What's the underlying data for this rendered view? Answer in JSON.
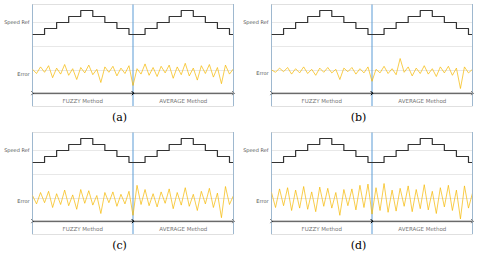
{
  "chart_data": [
    {
      "type": "line",
      "title": "(a)",
      "xlim": [
        0,
        100
      ],
      "ylim": [
        -6,
        11
      ],
      "yticks": [
        -4,
        0,
        4,
        8
      ],
      "grid": true,
      "tick_labels": false,
      "annotations": [
        {
          "text": "FUZZY Method",
          "x": [
            0,
            50
          ]
        },
        {
          "text": "AVERAGE Method",
          "x": [
            50,
            100
          ]
        }
      ],
      "series": [
        {
          "name": "Speed Ref",
          "color": "#333333",
          "line_style": "step",
          "x": [
            0,
            6,
            12,
            18,
            24,
            30,
            36,
            42,
            48,
            50,
            56,
            62,
            68,
            74,
            80,
            86,
            92,
            98,
            100
          ],
          "values": [
            6,
            7,
            8,
            9,
            10,
            9,
            8,
            7,
            6,
            6,
            7,
            8,
            9,
            10,
            9,
            8,
            7,
            6,
            6
          ]
        },
        {
          "name": "Error",
          "color": "#f5b800",
          "line_style": "solid",
          "x": [
            0,
            2,
            4,
            6,
            8,
            10,
            12,
            14,
            16,
            18,
            20,
            22,
            24,
            26,
            28,
            30,
            32,
            34,
            36,
            38,
            40,
            42,
            44,
            46,
            48,
            50,
            52,
            54,
            56,
            58,
            60,
            62,
            64,
            66,
            68,
            70,
            72,
            74,
            76,
            78,
            80,
            82,
            84,
            86,
            88,
            90,
            92,
            94,
            96,
            98,
            100
          ],
          "values": [
            0.2,
            -0.5,
            0.6,
            -0.3,
            0.8,
            -1.2,
            0.4,
            -0.6,
            1.0,
            -0.8,
            0.3,
            -1.5,
            0.5,
            -0.4,
            0.9,
            -0.7,
            0.2,
            -2.0,
            0.6,
            -0.3,
            0.7,
            -0.9,
            0.4,
            -0.5,
            0.8,
            -2.5,
            0.3,
            -0.6,
            1.1,
            -0.8,
            0.5,
            -1.0,
            0.7,
            -0.4,
            0.9,
            -1.3,
            0.6,
            -0.7,
            1.2,
            -0.9,
            0.4,
            -1.6,
            0.8,
            -0.5,
            1.0,
            -1.1,
            0.5,
            -2.2,
            0.9,
            -0.6,
            0.3
          ]
        }
      ]
    },
    {
      "type": "line",
      "title": "(b)",
      "xlim": [
        0,
        100
      ],
      "ylim": [
        -6,
        11
      ],
      "yticks": [
        -4,
        0,
        4,
        8
      ],
      "grid": true,
      "tick_labels": false,
      "annotations": [
        {
          "text": "FUZZY Method",
          "x": [
            0,
            50
          ]
        },
        {
          "text": "AVERAGE Method",
          "x": [
            50,
            100
          ]
        }
      ],
      "series": [
        {
          "name": "Speed Ref",
          "color": "#333333",
          "line_style": "step",
          "x": [
            0,
            6,
            12,
            18,
            24,
            30,
            36,
            42,
            48,
            50,
            56,
            62,
            68,
            74,
            80,
            86,
            92,
            98,
            100
          ],
          "values": [
            6,
            7,
            8,
            9,
            10,
            9,
            8,
            7,
            6,
            6,
            7,
            8,
            9,
            10,
            9,
            8,
            7,
            6,
            6
          ]
        },
        {
          "name": "Error",
          "color": "#f5b800",
          "line_style": "solid",
          "x": [
            0,
            2,
            4,
            6,
            8,
            10,
            12,
            14,
            16,
            18,
            20,
            22,
            24,
            26,
            28,
            30,
            32,
            34,
            36,
            38,
            40,
            42,
            44,
            46,
            48,
            50,
            52,
            54,
            56,
            58,
            60,
            62,
            64,
            66,
            68,
            70,
            72,
            74,
            76,
            78,
            80,
            82,
            84,
            86,
            88,
            90,
            92,
            94,
            96,
            98,
            100
          ],
          "values": [
            0.1,
            -0.3,
            0.4,
            -0.2,
            0.5,
            -0.6,
            0.3,
            -0.4,
            0.6,
            -0.5,
            0.2,
            -0.8,
            0.4,
            -0.3,
            0.5,
            -0.4,
            0.2,
            -1.5,
            0.4,
            -0.2,
            0.5,
            -0.6,
            0.3,
            -0.4,
            0.6,
            -1.8,
            0.2,
            -0.4,
            0.7,
            -0.5,
            0.3,
            -0.7,
            2.0,
            -0.3,
            0.6,
            -0.9,
            0.4,
            -0.5,
            0.8,
            -0.6,
            0.3,
            -1.0,
            0.6,
            -0.4,
            0.7,
            -0.8,
            0.4,
            -3.0,
            0.6,
            -0.4,
            0.2
          ]
        }
      ]
    },
    {
      "type": "line",
      "title": "(c)",
      "xlim": [
        0,
        100
      ],
      "ylim": [
        -6,
        11
      ],
      "yticks": [
        -4,
        0,
        4,
        8
      ],
      "grid": true,
      "tick_labels": false,
      "annotations": [
        {
          "text": "FUZZY Method",
          "x": [
            0,
            50
          ]
        },
        {
          "text": "AVERAGE Method",
          "x": [
            50,
            100
          ]
        }
      ],
      "series": [
        {
          "name": "Speed Ref",
          "color": "#333333",
          "line_style": "step",
          "x": [
            0,
            6,
            12,
            18,
            24,
            30,
            36,
            42,
            48,
            50,
            56,
            62,
            68,
            74,
            80,
            86,
            92,
            98,
            100
          ],
          "values": [
            6,
            7,
            8,
            9,
            10,
            9,
            8,
            7,
            6,
            6,
            7,
            8,
            9,
            10,
            9,
            8,
            7,
            6,
            6
          ]
        },
        {
          "name": "Error",
          "color": "#f5b800",
          "line_style": "solid",
          "x": [
            0,
            2,
            4,
            6,
            8,
            10,
            12,
            14,
            16,
            18,
            20,
            22,
            24,
            26,
            28,
            30,
            32,
            34,
            36,
            38,
            40,
            42,
            44,
            46,
            48,
            50,
            52,
            54,
            56,
            58,
            60,
            62,
            64,
            66,
            68,
            70,
            72,
            74,
            76,
            78,
            80,
            82,
            84,
            86,
            88,
            90,
            92,
            94,
            96,
            98,
            100
          ],
          "values": [
            0.5,
            -0.9,
            1.0,
            -0.7,
            1.2,
            -1.5,
            0.8,
            -1.0,
            1.4,
            -1.2,
            0.6,
            -1.8,
            1.5,
            -0.8,
            1.3,
            -1.1,
            0.5,
            -2.5,
            1.0,
            -0.7,
            1.1,
            -1.3,
            0.7,
            -0.9,
            1.2,
            -2.8,
            2.2,
            -1.0,
            1.5,
            -1.2,
            0.8,
            -1.4,
            1.1,
            -0.8,
            1.6,
            -1.7,
            1.0,
            -1.1,
            1.8,
            -1.3,
            0.7,
            -2.0,
            1.2,
            -0.9,
            1.7,
            -1.5,
            0.9,
            -3.2,
            2.0,
            -1.0,
            0.5
          ]
        }
      ]
    },
    {
      "type": "line",
      "title": "(d)",
      "xlim": [
        0,
        100
      ],
      "ylim": [
        -6,
        11
      ],
      "yticks": [
        -4,
        0,
        4,
        8
      ],
      "grid": true,
      "tick_labels": false,
      "annotations": [
        {
          "text": "FUZZY Method",
          "x": [
            0,
            50
          ]
        },
        {
          "text": "AVERAGE Method",
          "x": [
            50,
            100
          ]
        }
      ],
      "series": [
        {
          "name": "Speed Ref",
          "color": "#333333",
          "line_style": "step",
          "x": [
            0,
            6,
            12,
            18,
            24,
            30,
            36,
            42,
            48,
            50,
            56,
            62,
            68,
            74,
            80,
            86,
            92,
            98,
            100
          ],
          "values": [
            6,
            7,
            8,
            9,
            10,
            9,
            8,
            7,
            6,
            6,
            7,
            8,
            9,
            10,
            9,
            8,
            7,
            6,
            6
          ]
        },
        {
          "name": "Error",
          "color": "#f5b800",
          "line_style": "solid",
          "x": [
            0,
            2,
            4,
            6,
            8,
            10,
            12,
            14,
            16,
            18,
            20,
            22,
            24,
            26,
            28,
            30,
            32,
            34,
            36,
            38,
            40,
            42,
            44,
            46,
            48,
            50,
            52,
            54,
            56,
            58,
            60,
            62,
            64,
            66,
            68,
            70,
            72,
            74,
            76,
            78,
            80,
            82,
            84,
            86,
            88,
            90,
            92,
            94,
            96,
            98,
            100
          ],
          "values": [
            1.0,
            -1.5,
            1.6,
            -1.2,
            1.8,
            -2.0,
            1.4,
            -1.6,
            2.0,
            -1.8,
            1.1,
            -2.2,
            1.9,
            -1.3,
            1.7,
            -1.6,
            1.0,
            -2.8,
            1.5,
            -1.2,
            1.6,
            -1.9,
            2.2,
            -1.5,
            2.4,
            -2.6,
            1.8,
            -2.0,
            2.5,
            -2.3,
            1.4,
            -2.1,
            1.7,
            -1.3,
            2.1,
            -2.2,
            1.5,
            -1.7,
            2.3,
            -1.9,
            1.2,
            -2.5,
            1.8,
            -1.4,
            2.2,
            -2.0,
            1.4,
            -3.4,
            2.1,
            -1.6,
            0.9
          ]
        }
      ]
    }
  ]
}
